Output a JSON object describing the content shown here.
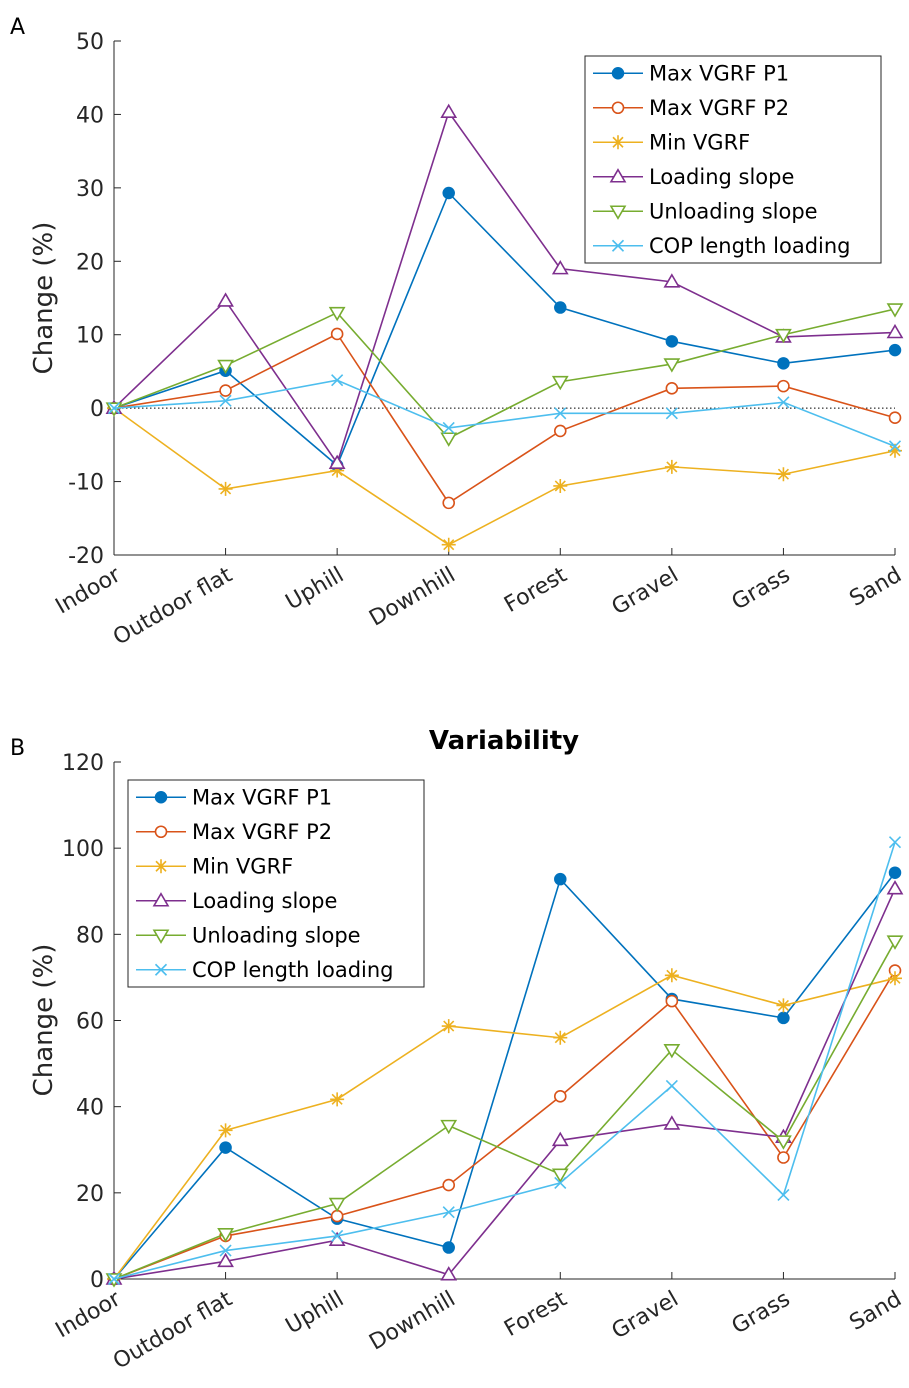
{
  "chart_data": [
    {
      "type": "line",
      "panel_label": "A",
      "title": "",
      "xlabel": "",
      "ylabel": "Change (%)",
      "ylim": [
        -20,
        50
      ],
      "yticks": [
        -20,
        -10,
        0,
        10,
        20,
        30,
        40,
        50
      ],
      "zero_line": true,
      "legend_position": "top-right",
      "categories": [
        "Indoor",
        "Outdoor flat",
        "Uphill",
        "Downhill",
        "Forest",
        "Gravel",
        "Grass",
        "Sand"
      ],
      "series": [
        {
          "name": "Max VGRF P1",
          "color": "#0072BD",
          "marker": "filled-circle",
          "values": [
            0,
            5.1,
            -7.8,
            29.3,
            13.7,
            9.1,
            6.1,
            7.9
          ]
        },
        {
          "name": "Max VGRF P2",
          "color": "#D95319",
          "marker": "circle",
          "values": [
            0,
            2.4,
            10.1,
            -12.9,
            -3.1,
            2.7,
            3.0,
            -1.3
          ]
        },
        {
          "name": "Min VGRF",
          "color": "#EDB120",
          "marker": "asterisk",
          "values": [
            0,
            -11.0,
            -8.5,
            -18.6,
            -10.6,
            -8.0,
            -9.0,
            -5.8
          ]
        },
        {
          "name": "Loading slope",
          "color": "#7E2F8E",
          "marker": "triangle-up",
          "values": [
            0,
            14.6,
            -7.5,
            40.3,
            19.0,
            17.2,
            9.7,
            10.3
          ]
        },
        {
          "name": "Unloading slope",
          "color": "#77AC30",
          "marker": "triangle-down",
          "values": [
            0,
            5.8,
            13.0,
            -4.1,
            3.6,
            6.0,
            10.0,
            13.5
          ]
        },
        {
          "name": "COP length loading",
          "color": "#4DBEEE",
          "marker": "x",
          "values": [
            0,
            1.0,
            3.8,
            -2.7,
            -0.7,
            -0.7,
            0.8,
            -5.2
          ]
        }
      ]
    },
    {
      "type": "line",
      "panel_label": "B",
      "title": "Variability",
      "xlabel": "",
      "ylabel": "Change (%)",
      "ylim": [
        0,
        120
      ],
      "yticks": [
        0,
        20,
        40,
        60,
        80,
        100,
        120
      ],
      "zero_line": false,
      "legend_position": "top-left",
      "categories": [
        "Indoor",
        "Outdoor flat",
        "Uphill",
        "Downhill",
        "Forest",
        "Gravel",
        "Grass",
        "Sand"
      ],
      "series": [
        {
          "name": "Max VGRF P1",
          "color": "#0072BD",
          "marker": "filled-circle",
          "values": [
            0,
            30.5,
            14.0,
            7.3,
            92.8,
            65.0,
            60.6,
            94.3
          ]
        },
        {
          "name": "Max VGRF P2",
          "color": "#D95319",
          "marker": "circle",
          "values": [
            0,
            10.0,
            14.6,
            21.8,
            42.4,
            64.5,
            28.2,
            71.6
          ]
        },
        {
          "name": "Min VGRF",
          "color": "#EDB120",
          "marker": "asterisk",
          "values": [
            0,
            34.5,
            41.7,
            58.7,
            56.0,
            70.5,
            63.5,
            69.8
          ]
        },
        {
          "name": "Loading slope",
          "color": "#7E2F8E",
          "marker": "triangle-up",
          "values": [
            0,
            4.1,
            9.0,
            1.0,
            32.2,
            36.0,
            32.9,
            90.6
          ]
        },
        {
          "name": "Unloading slope",
          "color": "#77AC30",
          "marker": "triangle-down",
          "values": [
            0,
            10.5,
            17.5,
            35.6,
            24.3,
            53.2,
            32.0,
            78.4
          ]
        },
        {
          "name": "COP length loading",
          "color": "#4DBEEE",
          "marker": "x",
          "values": [
            0,
            6.6,
            10.0,
            15.5,
            22.3,
            44.8,
            19.5,
            101.4
          ]
        }
      ]
    }
  ]
}
